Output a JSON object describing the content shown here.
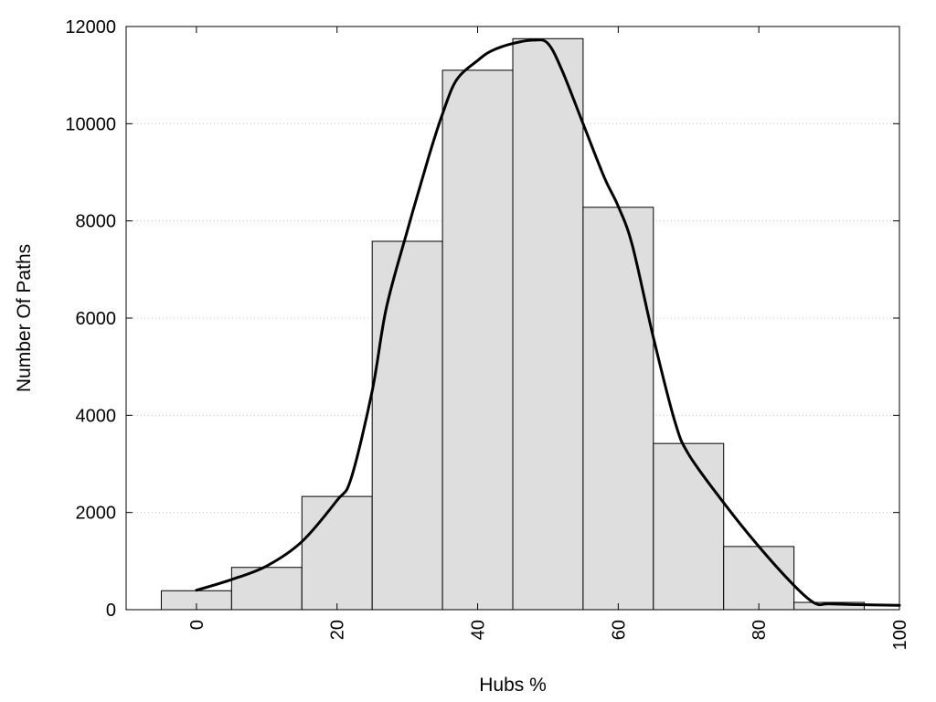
{
  "chart_data": {
    "type": "bar",
    "xlabel": "Hubs %",
    "ylabel": "Number Of Paths",
    "xlim": [
      -10,
      100
    ],
    "ylim": [
      0,
      12000
    ],
    "grid": "horizontal dotted",
    "x_ticks": [
      "0",
      "20",
      "40",
      "60",
      "80",
      "100"
    ],
    "y_ticks": [
      "0",
      "2000",
      "4000",
      "6000",
      "8000",
      "10000",
      "12000"
    ],
    "bin_width": 10,
    "categories": [
      0,
      10,
      20,
      30,
      40,
      50,
      60,
      70,
      80,
      90
    ],
    "values": [
      390,
      870,
      2330,
      7580,
      11100,
      11750,
      8280,
      3420,
      1300,
      150
    ],
    "bar_color": "#dedede",
    "series": [
      {
        "type": "line",
        "x": [
          0,
          5,
          10,
          15,
          20,
          22,
          25,
          27,
          30,
          33,
          35,
          37,
          40,
          42,
          45,
          48,
          50,
          52,
          55,
          58,
          60,
          62,
          65,
          68,
          70,
          75,
          80,
          85,
          88,
          90,
          95,
          100
        ],
        "y": [
          400,
          620,
          900,
          1400,
          2250,
          2700,
          4500,
          6200,
          7800,
          9300,
          10200,
          10900,
          11300,
          11500,
          11650,
          11720,
          11650,
          11100,
          10000,
          8900,
          8300,
          7500,
          5600,
          3900,
          3200,
          2200,
          1300,
          500,
          130,
          120,
          100,
          90
        ],
        "color": "#000000"
      }
    ]
  }
}
